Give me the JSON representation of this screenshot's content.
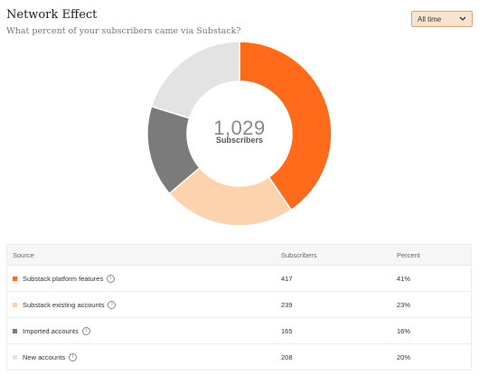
{
  "header": {
    "title": "Network Effect",
    "subtitle": "What percent of your subscribers came via Substack?"
  },
  "filter": {
    "selected": "All time",
    "icon": "chevron-down-icon"
  },
  "chart_data": {
    "type": "pie",
    "center_value": "1,029",
    "center_label": "Subscribers",
    "slices": [
      {
        "label": "Substack platform features",
        "value": 417,
        "percent": 41,
        "color": "#ff6b1a"
      },
      {
        "label": "Substack existing accounts",
        "value": 239,
        "percent": 23,
        "color": "#fdd3ae"
      },
      {
        "label": "Imported accounts",
        "value": 165,
        "percent": 16,
        "color": "#7b7b7b"
      },
      {
        "label": "New accounts",
        "value": 208,
        "percent": 20,
        "color": "#e3e3e3"
      }
    ]
  },
  "table": {
    "headers": {
      "source": "Source",
      "subscribers": "Subscribers",
      "percent": "Percent"
    },
    "rows": [
      {
        "source": "Substack platform features",
        "subscribers": "417",
        "percent": "41%",
        "color": "#ff6b1a"
      },
      {
        "source": "Substack existing accounts",
        "subscribers": "239",
        "percent": "23%",
        "color": "#fdd3ae"
      },
      {
        "source": "Imported accounts",
        "subscribers": "165",
        "percent": "16%",
        "color": "#7b7b7b"
      },
      {
        "source": "New accounts",
        "subscribers": "208",
        "percent": "20%",
        "color": "#e3e3e3"
      }
    ],
    "info_icon": "info-icon"
  }
}
